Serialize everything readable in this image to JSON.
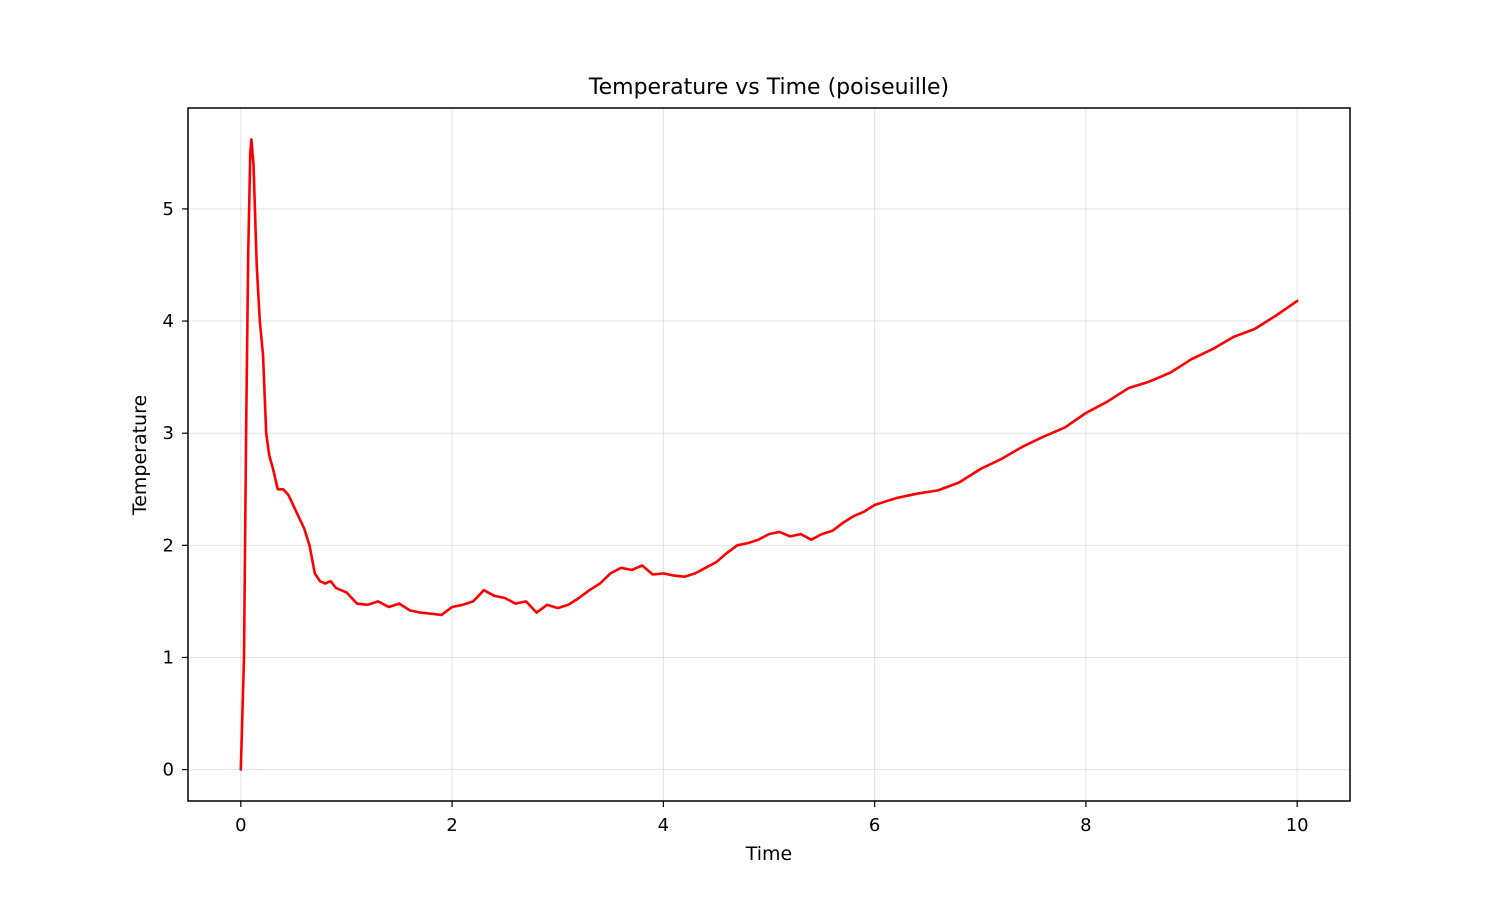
{
  "chart_data": {
    "type": "line",
    "title": "Temperature vs Time (poiseuille)",
    "xlabel": "Time",
    "ylabel": "Temperature",
    "xlim": [
      -0.5,
      10.5
    ],
    "ylim": [
      -0.28,
      5.9
    ],
    "xticks": [
      0,
      2,
      4,
      6,
      8,
      10
    ],
    "yticks": [
      0,
      1,
      2,
      3,
      4,
      5
    ],
    "grid": true,
    "legend": "none",
    "series": [
      {
        "color": "#ff0000",
        "x": [
          0,
          0.03,
          0.05,
          0.07,
          0.09,
          0.1,
          0.12,
          0.15,
          0.18,
          0.21,
          0.24,
          0.27,
          0.3,
          0.35,
          0.4,
          0.45,
          0.5,
          0.55,
          0.6,
          0.65,
          0.7,
          0.75,
          0.8,
          0.85,
          0.9,
          1.0,
          1.1,
          1.2,
          1.3,
          1.4,
          1.5,
          1.6,
          1.7,
          1.8,
          1.9,
          2.0,
          2.1,
          2.2,
          2.3,
          2.4,
          2.5,
          2.6,
          2.7,
          2.8,
          2.9,
          3.0,
          3.1,
          3.2,
          3.3,
          3.4,
          3.5,
          3.6,
          3.7,
          3.8,
          3.9,
          4.0,
          4.1,
          4.2,
          4.3,
          4.4,
          4.5,
          4.6,
          4.7,
          4.8,
          4.9,
          5.0,
          5.1,
          5.2,
          5.3,
          5.4,
          5.5,
          5.6,
          5.7,
          5.8,
          5.9,
          6.0,
          6.2,
          6.4,
          6.6,
          6.8,
          7.0,
          7.2,
          7.4,
          7.6,
          7.8,
          8.0,
          8.2,
          8.4,
          8.6,
          8.8,
          9.0,
          9.2,
          9.4,
          9.6,
          9.8,
          10.0
        ],
        "y": [
          0,
          1.0,
          3.0,
          4.6,
          5.5,
          5.62,
          5.4,
          4.5,
          4.0,
          3.7,
          3.0,
          2.8,
          2.7,
          2.5,
          2.5,
          2.45,
          2.35,
          2.25,
          2.15,
          2.0,
          1.75,
          1.68,
          1.66,
          1.68,
          1.62,
          1.58,
          1.48,
          1.47,
          1.5,
          1.45,
          1.48,
          1.42,
          1.4,
          1.39,
          1.38,
          1.45,
          1.47,
          1.5,
          1.6,
          1.55,
          1.53,
          1.48,
          1.5,
          1.4,
          1.47,
          1.44,
          1.47,
          1.53,
          1.6,
          1.66,
          1.75,
          1.8,
          1.78,
          1.82,
          1.74,
          1.75,
          1.73,
          1.72,
          1.75,
          1.8,
          1.85,
          1.93,
          2.0,
          2.02,
          2.05,
          2.1,
          2.12,
          2.08,
          2.1,
          2.05,
          2.1,
          2.13,
          2.2,
          2.26,
          2.3,
          2.36,
          2.42,
          2.46,
          2.49,
          2.56,
          2.68,
          2.77,
          2.88,
          2.97,
          3.05,
          3.18,
          3.28,
          3.4,
          3.46,
          3.54,
          3.66,
          3.75,
          3.86,
          3.93,
          4.05,
          4.18
        ]
      }
    ]
  }
}
